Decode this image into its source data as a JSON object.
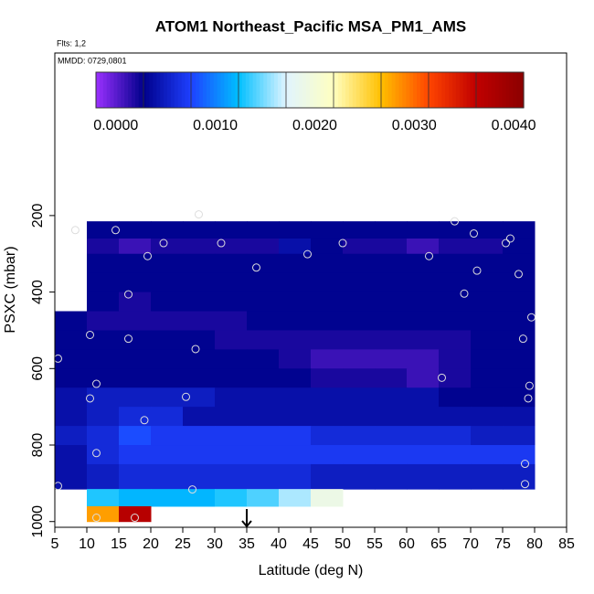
{
  "chart_data": {
    "type": "heatmap",
    "title": "ATOM1 Northeast_Pacific MSA_PM1_AMS",
    "flights_label": "Flts: 1,2",
    "date_label": "MMDD: 0729,0801",
    "xlabel": "Latitude (deg N)",
    "ylabel": "PSXC (mbar)",
    "xlim": [
      5,
      85
    ],
    "xticks": [
      5,
      10,
      15,
      20,
      25,
      30,
      35,
      40,
      45,
      50,
      55,
      60,
      65,
      70,
      75,
      80,
      85
    ],
    "ylim": [
      1015,
      -225
    ],
    "yticks": [
      200,
      400,
      600,
      800,
      1000
    ],
    "zlim": [
      -0.0002,
      0.0041
    ],
    "colorbar_ticks": [
      {
        "value": 0,
        "label": "0.0000"
      },
      {
        "value": 0.001,
        "label": "0.0010"
      },
      {
        "value": 0.002,
        "label": "0.0020"
      },
      {
        "value": 0.003,
        "label": "0.0030"
      },
      {
        "value": 0.004,
        "label": "0.0040"
      }
    ],
    "colors": [
      "#9b30ff",
      "#00008b",
      "#1e40ff",
      "#00bfff",
      "#e0f4ff",
      "#ffffc0",
      "#ffc000",
      "#ff4500",
      "#c00000",
      "#8b0000"
    ],
    "x_edges": [
      5,
      10,
      15,
      20,
      25,
      30,
      35,
      40,
      45,
      50,
      55,
      60,
      65,
      70,
      75,
      80
    ],
    "y_edges": [
      215,
      260,
      300,
      350,
      400,
      450,
      500,
      550,
      600,
      650,
      700,
      750,
      800,
      850,
      915,
      960,
      1000
    ],
    "z": [
      [
        null,
        0.0003,
        0.0003,
        0.0003,
        0.0003,
        0.0003,
        0.0003,
        0.0003,
        0.0003,
        0.0003,
        0.0003,
        0.0003,
        0.0003,
        0.0003,
        0.0003
      ],
      [
        null,
        0.0002,
        0.0001,
        0.0002,
        0.0002,
        0.0002,
        0.0002,
        0.0004,
        0.0003,
        0.0002,
        0.0002,
        0.0001,
        0.0002,
        0.0002,
        0.0003
      ],
      [
        null,
        0.0003,
        0.0003,
        0.0003,
        0.0003,
        0.0003,
        0.0003,
        0.0003,
        0.0003,
        0.0003,
        0.0003,
        0.0003,
        0.0003,
        0.0003,
        0.0003
      ],
      [
        null,
        0.0003,
        0.0003,
        0.0003,
        0.0003,
        0.0003,
        0.0003,
        0.0003,
        0.0003,
        0.0003,
        0.0003,
        0.0003,
        0.0003,
        0.0003,
        0.0003
      ],
      [
        null,
        0.0003,
        0.0002,
        0.0003,
        0.0003,
        0.0003,
        0.0003,
        0.0003,
        0.0003,
        0.0003,
        0.0003,
        0.0003,
        0.0003,
        0.0003,
        0.0003
      ],
      [
        0.0003,
        0.0002,
        0.0002,
        0.0002,
        0.0002,
        0.0002,
        0.0003,
        0.0003,
        0.0003,
        0.0003,
        0.0003,
        0.0003,
        0.0003,
        0.0003,
        0.0003
      ],
      [
        0.0003,
        0.0003,
        0.0003,
        0.0003,
        0.0003,
        0.0002,
        0.0002,
        0.0002,
        0.0002,
        0.0002,
        0.0002,
        0.0002,
        0.0002,
        0.0003,
        0.0003
      ],
      [
        0.0003,
        0.0003,
        0.0003,
        0.0003,
        0.0003,
        0.0003,
        0.0003,
        0.0002,
        0.0001,
        0.0001,
        0.0001,
        0.0001,
        0.0002,
        0.0003,
        0.0003
      ],
      [
        0.0003,
        0.0003,
        0.0003,
        0.0003,
        0.0003,
        0.0003,
        0.0003,
        0.0003,
        0.0002,
        0.0002,
        0.0002,
        0.0001,
        0.0002,
        0.0003,
        0.0003
      ],
      [
        0.0004,
        0.0005,
        0.0005,
        0.0005,
        0.0005,
        0.0004,
        0.0004,
        0.0004,
        0.0004,
        0.0004,
        0.0004,
        0.0004,
        0.0003,
        0.0003,
        0.0003
      ],
      [
        0.0004,
        0.0005,
        0.0006,
        0.0006,
        0.0004,
        0.0004,
        0.0004,
        0.0004,
        0.0004,
        0.0004,
        0.0004,
        0.0004,
        0.0004,
        0.0004,
        0.0004
      ],
      [
        0.0005,
        0.0006,
        0.0008,
        0.0007,
        0.0007,
        0.0007,
        0.0007,
        0.0007,
        0.0006,
        0.0006,
        0.0006,
        0.0006,
        0.0006,
        0.0005,
        0.0005
      ],
      [
        0.0004,
        0.0006,
        0.0007,
        0.0007,
        0.0007,
        0.0007,
        0.0007,
        0.0007,
        0.0007,
        0.0007,
        0.0007,
        0.0007,
        0.0007,
        0.0007,
        0.0007
      ],
      [
        0.0004,
        0.0005,
        0.0006,
        0.0006,
        0.0006,
        0.0006,
        0.0006,
        0.0006,
        0.0005,
        0.0005,
        0.0005,
        0.0005,
        0.0005,
        0.0005,
        0.0005
      ],
      [
        null,
        0.0013,
        0.0012,
        0.0012,
        0.0012,
        0.0013,
        0.0014,
        0.0016,
        0.0019,
        null,
        null,
        null,
        null,
        null,
        null
      ],
      [
        null,
        0.0028,
        0.0037,
        null,
        null,
        null,
        null,
        null,
        null,
        null,
        null,
        null,
        null,
        null,
        null
      ]
    ],
    "track": {
      "x": [
        8.2,
        14.5,
        19.5,
        22,
        27.5,
        31,
        36.5,
        44.5,
        50,
        63.5,
        67.5,
        70.5,
        71,
        75.5,
        76.2,
        77.5,
        16.5,
        69,
        10.5,
        16.5,
        27,
        79.5,
        78.2,
        5.5,
        11.5,
        10.5,
        25.5,
        65.5,
        79.2,
        79,
        19,
        11.5,
        78.5,
        78.5,
        5.5,
        26.5,
        11.5,
        17.5
      ],
      "y": [
        238,
        238,
        306,
        272,
        197,
        272,
        336,
        301,
        272,
        306,
        215,
        247,
        344,
        272,
        260,
        353,
        406,
        404,
        512,
        522,
        549,
        466,
        522,
        574,
        640,
        678,
        674,
        624,
        645,
        678,
        735,
        821,
        849,
        902,
        907,
        916,
        990,
        990
      ]
    },
    "arrow_x": 35
  }
}
